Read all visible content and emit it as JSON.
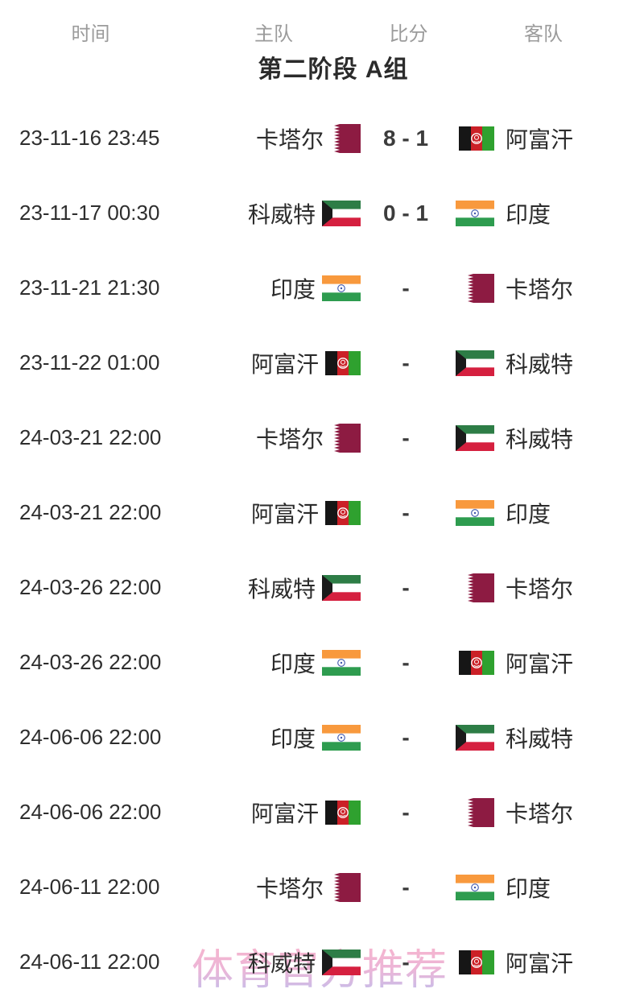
{
  "table": {
    "columns": [
      "时间",
      "主队",
      "比分",
      "客队"
    ],
    "stage_title": "第二阶段 A组"
  },
  "matches": [
    {
      "time": "23-11-16 23:45",
      "home": "卡塔尔",
      "home_flag": "qatar",
      "score": "8 - 1",
      "away": "阿富汗",
      "away_flag": "afghanistan"
    },
    {
      "time": "23-11-17 00:30",
      "home": "科威特",
      "home_flag": "kuwait",
      "score": "0 - 1",
      "away": "印度",
      "away_flag": "india"
    },
    {
      "time": "23-11-21 21:30",
      "home": "印度",
      "home_flag": "india",
      "score": "-",
      "away": "卡塔尔",
      "away_flag": "qatar"
    },
    {
      "time": "23-11-22 01:00",
      "home": "阿富汗",
      "home_flag": "afghanistan",
      "score": "-",
      "away": "科威特",
      "away_flag": "kuwait"
    },
    {
      "time": "24-03-21 22:00",
      "home": "卡塔尔",
      "home_flag": "qatar",
      "score": "-",
      "away": "科威特",
      "away_flag": "kuwait"
    },
    {
      "time": "24-03-21 22:00",
      "home": "阿富汗",
      "home_flag": "afghanistan",
      "score": "-",
      "away": "印度",
      "away_flag": "india"
    },
    {
      "time": "24-03-26 22:00",
      "home": "科威特",
      "home_flag": "kuwait",
      "score": "-",
      "away": "卡塔尔",
      "away_flag": "qatar"
    },
    {
      "time": "24-03-26 22:00",
      "home": "印度",
      "home_flag": "india",
      "score": "-",
      "away": "阿富汗",
      "away_flag": "afghanistan"
    },
    {
      "time": "24-06-06 22:00",
      "home": "印度",
      "home_flag": "india",
      "score": "-",
      "away": "科威特",
      "away_flag": "kuwait"
    },
    {
      "time": "24-06-06 22:00",
      "home": "阿富汗",
      "home_flag": "afghanistan",
      "score": "-",
      "away": "卡塔尔",
      "away_flag": "qatar"
    },
    {
      "time": "24-06-11 22:00",
      "home": "卡塔尔",
      "home_flag": "qatar",
      "score": "-",
      "away": "印度",
      "away_flag": "india"
    },
    {
      "time": "24-06-11 22:00",
      "home": "科威特",
      "home_flag": "kuwait",
      "score": "-",
      "away": "阿富汗",
      "away_flag": "afghanistan"
    }
  ],
  "watermark": {
    "text": "体育官方推荐",
    "color_top": "#f5a9c6",
    "color_bottom": "#b9b3e8"
  },
  "flag_colors": {
    "qatar_maroon": "#8d1b42",
    "afghan_black": "#161616",
    "afghan_red": "#cb2027",
    "afghan_green": "#2fa12f",
    "kuwait_green": "#2d7d46",
    "kuwait_red": "#d5203f",
    "kuwait_black": "#1a1a1a",
    "india_saffron": "#f8993d",
    "india_green": "#2e9c4f",
    "india_navy": "#3f57ad"
  },
  "text_colors": {
    "header_gray": "#9b9b9b",
    "title_dark": "#2b2b2b",
    "body_dark": "#2e2e2e",
    "score_dark": "#3c3c3c"
  }
}
